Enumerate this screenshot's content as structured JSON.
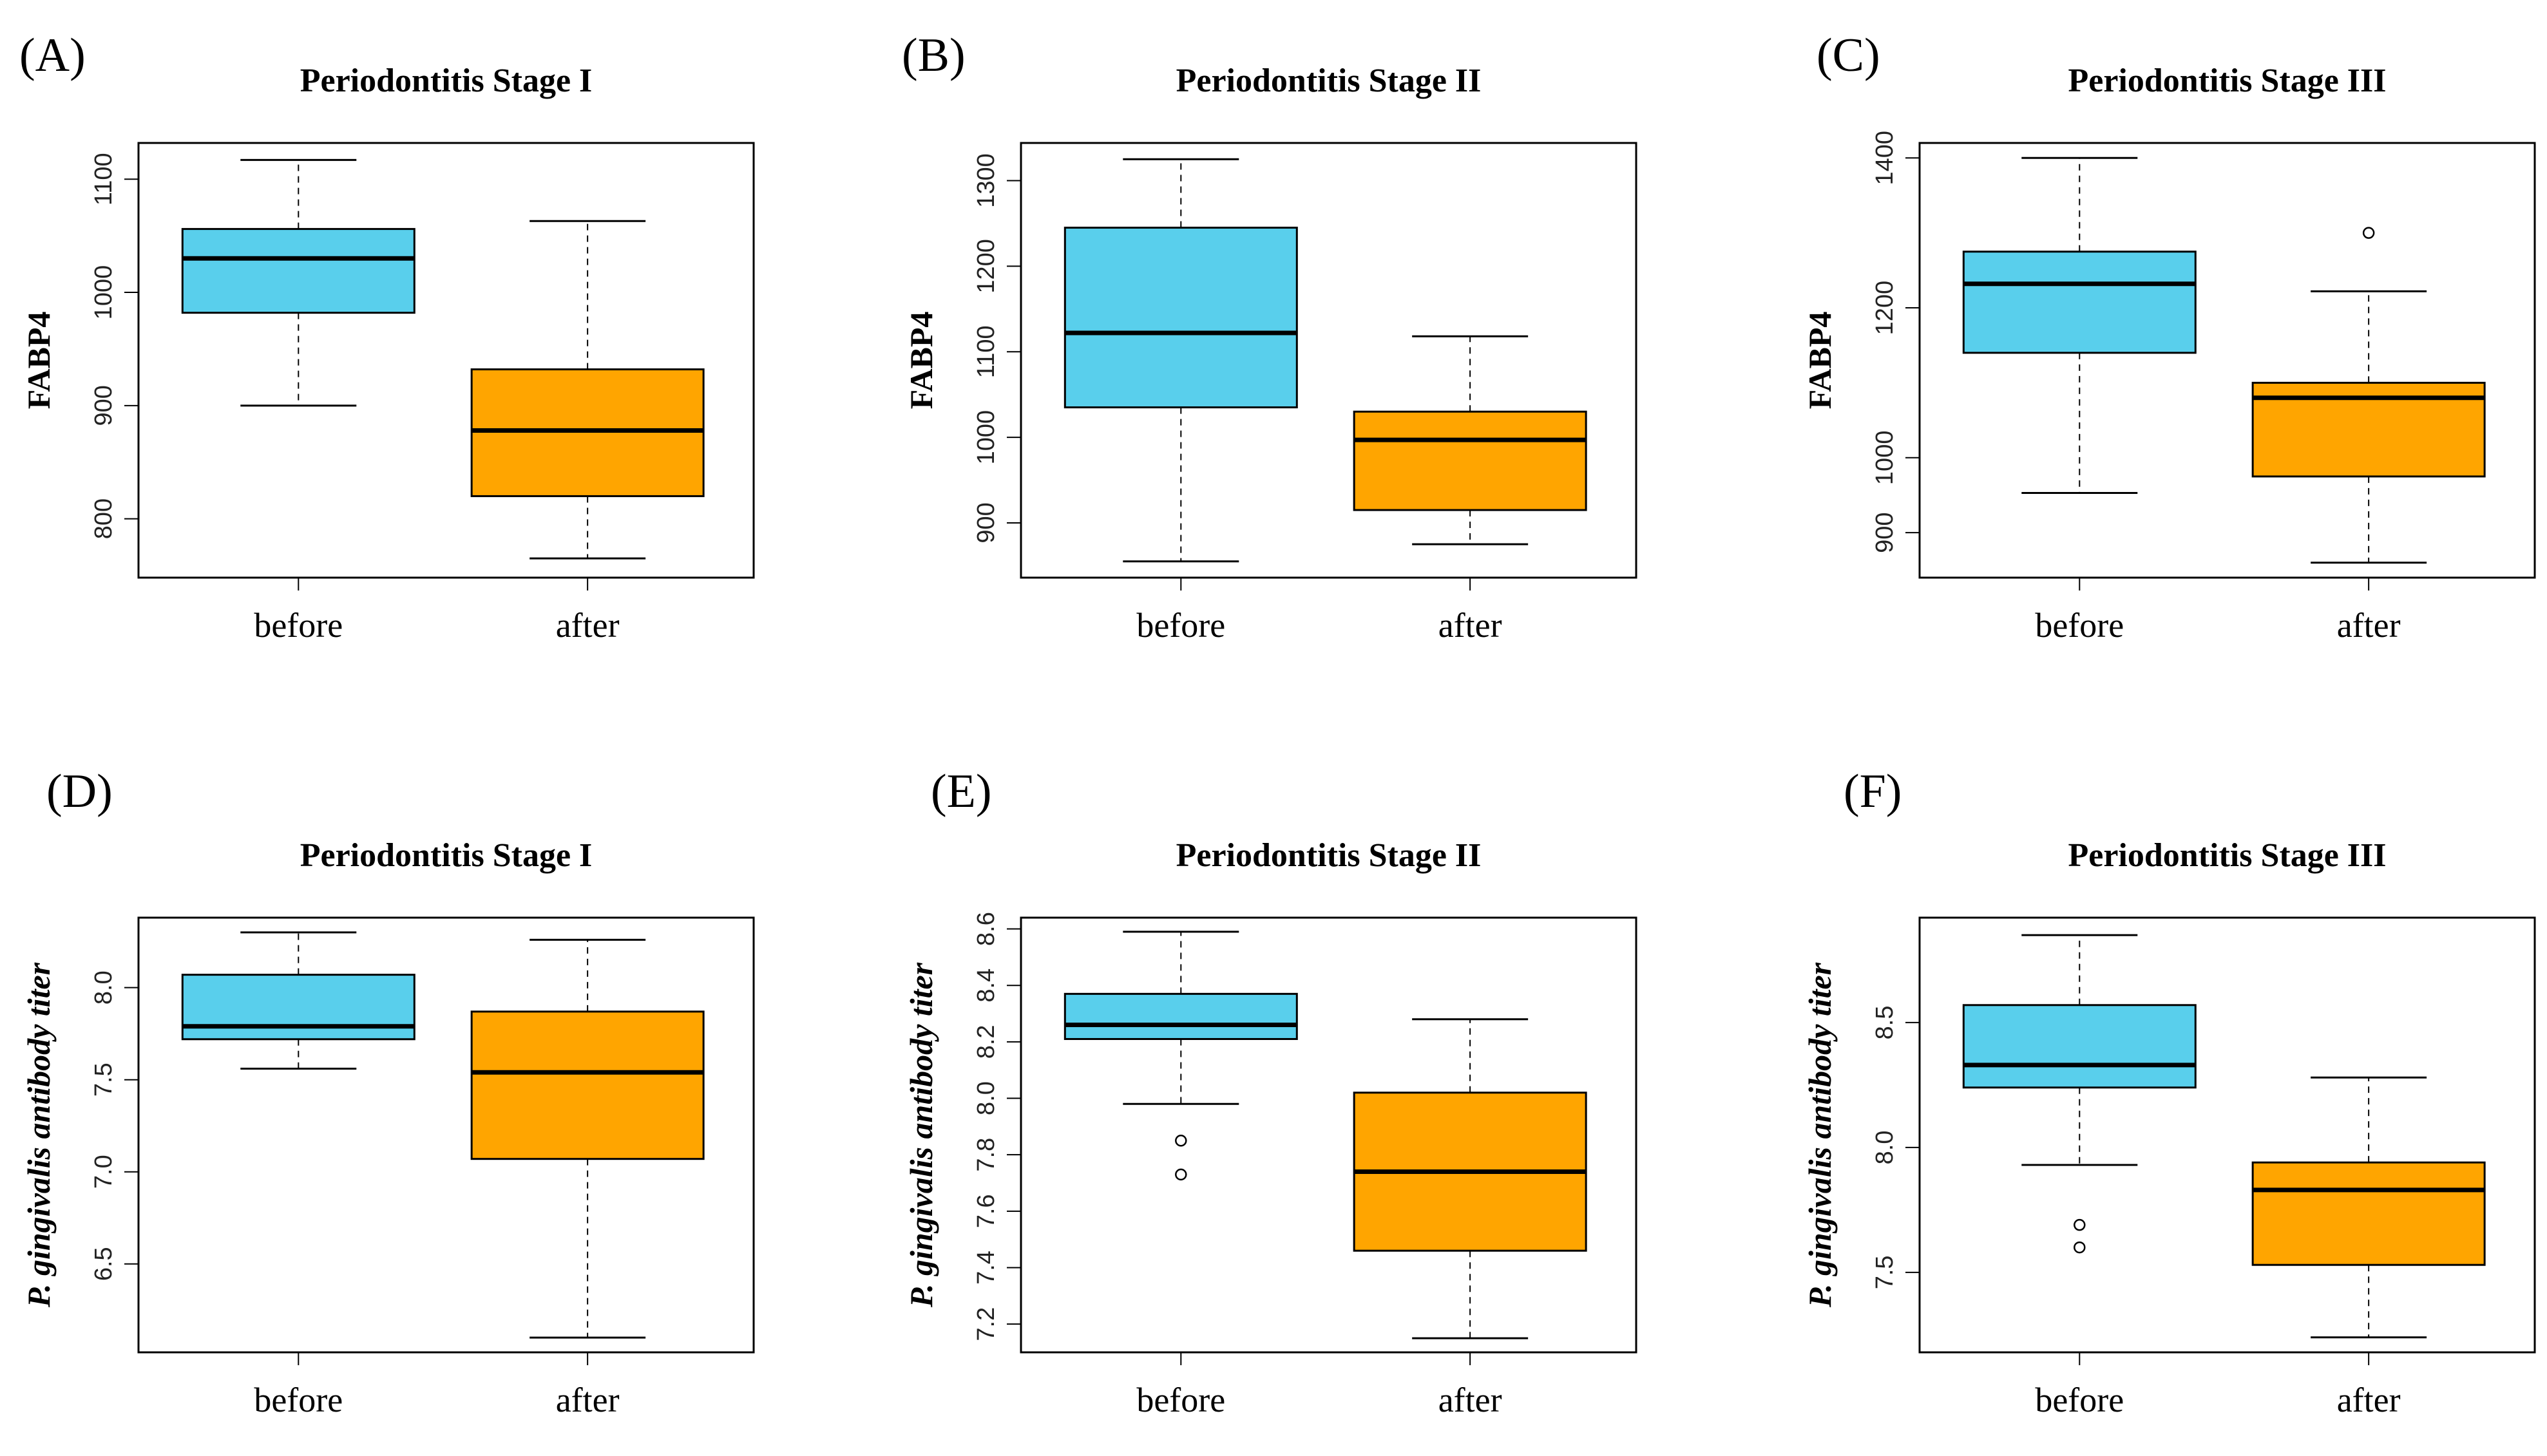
{
  "figure": {
    "group_labels": [
      "before",
      "after"
    ],
    "colors": {
      "before": "#59CFEC",
      "after": "#FFA500",
      "median": "#000000",
      "frame": "#000000"
    }
  },
  "chart_data": [
    {
      "panel": "(A)",
      "type": "boxplot",
      "title": "Periodontitis Stage I",
      "xlabel": "",
      "ylabel": "FABP4",
      "ylabel_italic": false,
      "ylim": [
        748,
        1132
      ],
      "yticks": [
        800,
        900,
        1000,
        1100
      ],
      "yticklabels": [
        "800",
        "900",
        "1000",
        "1100"
      ],
      "categories": [
        "before",
        "after"
      ],
      "boxes": [
        {
          "name": "before",
          "whisker_low": 900,
          "q1": 982,
          "median": 1030,
          "q3": 1056,
          "whisker_high": 1117,
          "outliers": []
        },
        {
          "name": "after",
          "whisker_low": 765,
          "q1": 820,
          "median": 878,
          "q3": 932,
          "whisker_high": 1063,
          "outliers": []
        }
      ]
    },
    {
      "panel": "(B)",
      "type": "boxplot",
      "title": "Periodontitis Stage II",
      "xlabel": "",
      "ylabel": "FABP4",
      "ylabel_italic": false,
      "ylim": [
        836,
        1344
      ],
      "yticks": [
        900,
        1000,
        1100,
        1200,
        1300
      ],
      "yticklabels": [
        "900",
        "1000",
        "1100",
        "1200",
        "1300"
      ],
      "categories": [
        "before",
        "after"
      ],
      "boxes": [
        {
          "name": "before",
          "whisker_low": 855,
          "q1": 1035,
          "median": 1122,
          "q3": 1245,
          "whisker_high": 1325,
          "outliers": []
        },
        {
          "name": "after",
          "whisker_low": 875,
          "q1": 915,
          "median": 997,
          "q3": 1030,
          "whisker_high": 1118,
          "outliers": []
        }
      ]
    },
    {
      "panel": "(C)",
      "type": "boxplot",
      "title": "Periodontitis Stage III",
      "xlabel": "",
      "ylabel": "FABP4",
      "ylabel_italic": false,
      "ylim": [
        840,
        1420
      ],
      "yticks": [
        900,
        1000,
        1200,
        1400
      ],
      "yticklabels": [
        "900",
        "1000",
        "1200",
        "1400"
      ],
      "categories": [
        "before",
        "after"
      ],
      "boxes": [
        {
          "name": "before",
          "whisker_low": 953,
          "q1": 1140,
          "median": 1232,
          "q3": 1275,
          "whisker_high": 1400,
          "outliers": []
        },
        {
          "name": "after",
          "whisker_low": 860,
          "q1": 975,
          "median": 1080,
          "q3": 1100,
          "whisker_high": 1222,
          "outliers": [
            1300
          ]
        }
      ]
    },
    {
      "panel": "(D)",
      "type": "boxplot",
      "title": "Periodontitis Stage I",
      "xlabel": "",
      "ylabel": "P. gingivalis antibody titer",
      "ylabel_italic": true,
      "ylim": [
        6.02,
        8.38
      ],
      "yticks": [
        6.5,
        7.0,
        7.5,
        8.0
      ],
      "yticklabels": [
        "6.5",
        "7.0",
        "7.5",
        "8.0"
      ],
      "categories": [
        "before",
        "after"
      ],
      "boxes": [
        {
          "name": "before",
          "whisker_low": 7.56,
          "q1": 7.72,
          "median": 7.79,
          "q3": 8.07,
          "whisker_high": 8.3,
          "outliers": []
        },
        {
          "name": "after",
          "whisker_low": 6.1,
          "q1": 7.07,
          "median": 7.54,
          "q3": 7.87,
          "whisker_high": 8.26,
          "outliers": []
        }
      ]
    },
    {
      "panel": "(E)",
      "type": "boxplot",
      "title": "Periodontitis Stage II",
      "xlabel": "",
      "ylabel": "P. gingivalis antibody titer",
      "ylabel_italic": true,
      "ylim": [
        7.1,
        8.64
      ],
      "yticks": [
        7.2,
        7.4,
        7.6,
        7.8,
        8.0,
        8.2,
        8.4,
        8.6
      ],
      "yticklabels": [
        "7.2",
        "7.4",
        "7.6",
        "7.8",
        "8.0",
        "8.2",
        "8.4",
        "8.6"
      ],
      "categories": [
        "before",
        "after"
      ],
      "boxes": [
        {
          "name": "before",
          "whisker_low": 7.98,
          "q1": 8.21,
          "median": 8.26,
          "q3": 8.37,
          "whisker_high": 8.59,
          "outliers": [
            7.85,
            7.73
          ]
        },
        {
          "name": "after",
          "whisker_low": 7.15,
          "q1": 7.46,
          "median": 7.74,
          "q3": 8.02,
          "whisker_high": 8.28,
          "outliers": []
        }
      ]
    },
    {
      "panel": "(F)",
      "type": "boxplot",
      "title": "Periodontitis Stage III",
      "xlabel": "",
      "ylabel": "P. gingivalis antibody titer",
      "ylabel_italic": true,
      "ylim": [
        7.18,
        8.92
      ],
      "yticks": [
        7.5,
        8.0,
        8.5
      ],
      "yticklabels": [
        "7.5",
        "8.0",
        "8.5"
      ],
      "categories": [
        "before",
        "after"
      ],
      "boxes": [
        {
          "name": "before",
          "whisker_low": 7.93,
          "q1": 8.24,
          "median": 8.33,
          "q3": 8.57,
          "whisker_high": 8.85,
          "outliers": [
            7.69,
            7.6
          ]
        },
        {
          "name": "after",
          "whisker_low": 7.24,
          "q1": 7.53,
          "median": 7.83,
          "q3": 7.94,
          "whisker_high": 8.28,
          "outliers": []
        }
      ]
    }
  ]
}
